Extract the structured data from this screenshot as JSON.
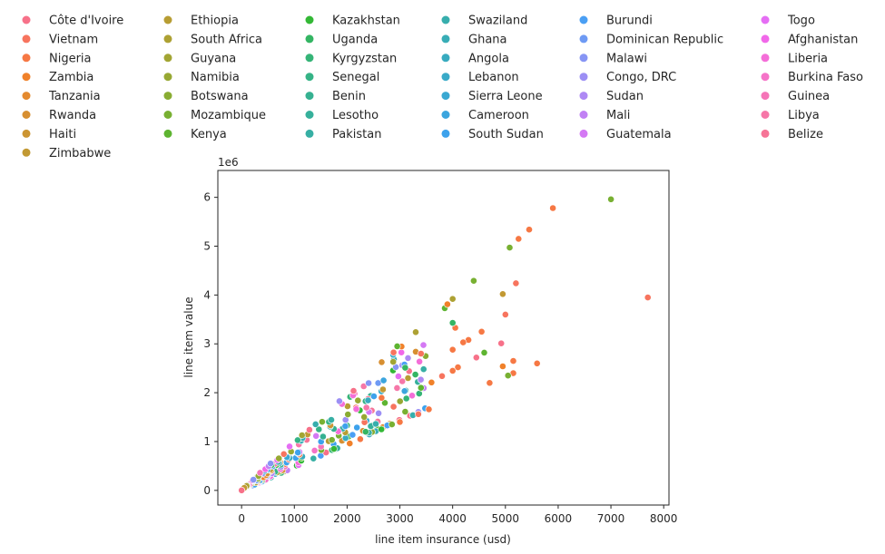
{
  "chart_data": {
    "type": "scatter",
    "title": "",
    "xlabel": "line item insurance (usd)",
    "ylabel": "line item value",
    "y_offset_label": "1e6",
    "xlim": [
      -450,
      8100
    ],
    "ylim": [
      -300000,
      6550000
    ],
    "x_ticks": [
      0,
      1000,
      2000,
      3000,
      4000,
      5000,
      6000,
      7000,
      8000
    ],
    "x_tick_labels": [
      "0",
      "1000",
      "2000",
      "3000",
      "4000",
      "5000",
      "6000",
      "7000",
      "8000"
    ],
    "y_ticks": [
      0,
      1000000,
      2000000,
      3000000,
      4000000,
      5000000,
      6000000
    ],
    "y_tick_labels": [
      "0",
      "1",
      "2",
      "3",
      "4",
      "5",
      "6"
    ],
    "grid": false,
    "legend_placement": "top, outside plot, 6 columns",
    "legend_columns": [
      [
        {
          "name": "Côte d'Ivoire",
          "color": "#f77189"
        },
        {
          "name": "Vietnam",
          "color": "#f7745e"
        },
        {
          "name": "Nigeria",
          "color": "#f67844"
        },
        {
          "name": "Zambia",
          "color": "#f0812a"
        },
        {
          "name": "Tanzania",
          "color": "#e48a2f"
        },
        {
          "name": "Rwanda",
          "color": "#d78f31"
        },
        {
          "name": "Haiti",
          "color": "#cc9532"
        },
        {
          "name": "Zimbabwe",
          "color": "#c29933"
        }
      ],
      [
        {
          "name": "Ethiopia",
          "color": "#b79d33"
        },
        {
          "name": "South Africa",
          "color": "#ada133"
        },
        {
          "name": "Guyana",
          "color": "#a2a533"
        },
        {
          "name": "Namibia",
          "color": "#97a833"
        },
        {
          "name": "Botswana",
          "color": "#89ac33"
        },
        {
          "name": "Mozambique",
          "color": "#78b032"
        },
        {
          "name": "Kenya",
          "color": "#5eb431"
        }
      ],
      [
        {
          "name": "Kazakhstan",
          "color": "#33b836"
        },
        {
          "name": "Uganda",
          "color": "#34b563"
        },
        {
          "name": "Kyrgyzstan",
          "color": "#35b477"
        },
        {
          "name": "Senegal",
          "color": "#35b386"
        },
        {
          "name": "Benin",
          "color": "#36b191"
        },
        {
          "name": "Lesotho",
          "color": "#36b09b"
        },
        {
          "name": "Pakistan",
          "color": "#37afa4"
        }
      ],
      [
        {
          "name": "Swaziland",
          "color": "#37aead"
        },
        {
          "name": "Ghana",
          "color": "#38adb6"
        },
        {
          "name": "Angola",
          "color": "#38abbf"
        },
        {
          "name": "Lebanon",
          "color": "#39aac8"
        },
        {
          "name": "Sierra Leone",
          "color": "#3aa8d2"
        },
        {
          "name": "Cameroon",
          "color": "#3ba5de"
        },
        {
          "name": "South Sudan",
          "color": "#3da2ec"
        }
      ],
      [
        {
          "name": "Burundi",
          "color": "#4a9ff4"
        },
        {
          "name": "Dominican Republic",
          "color": "#6e9af4"
        },
        {
          "name": "Malawi",
          "color": "#8795f4"
        },
        {
          "name": "Congo, DRC",
          "color": "#9c8ff4"
        },
        {
          "name": "Sudan",
          "color": "#ae89f4"
        },
        {
          "name": "Mali",
          "color": "#c181f4"
        },
        {
          "name": "Guatemala",
          "color": "#d479f4"
        }
      ],
      [
        {
          "name": "Togo",
          "color": "#e56ef4"
        },
        {
          "name": "Afghanistan",
          "color": "#f168e9"
        },
        {
          "name": "Liberia",
          "color": "#f46ed8"
        },
        {
          "name": "Burkina Faso",
          "color": "#f573c8"
        },
        {
          "name": "Guinea",
          "color": "#f575b8"
        },
        {
          "name": "Libya",
          "color": "#f677a8"
        },
        {
          "name": "Belize",
          "color": "#f67497"
        }
      ]
    ],
    "notable_points": [
      {
        "x": 5900,
        "y": 5780000,
        "color": "#f67844"
      },
      {
        "x": 5450,
        "y": 5340000,
        "color": "#f67844"
      },
      {
        "x": 5250,
        "y": 5150000,
        "color": "#f67844"
      },
      {
        "x": 7000,
        "y": 5960000,
        "color": "#78b032"
      },
      {
        "x": 5080,
        "y": 4970000,
        "color": "#78b032"
      },
      {
        "x": 4400,
        "y": 4290000,
        "color": "#78b032"
      },
      {
        "x": 5200,
        "y": 4240000,
        "color": "#f7745e"
      },
      {
        "x": 7700,
        "y": 3950000,
        "color": "#f7745e"
      },
      {
        "x": 4000,
        "y": 3920000,
        "color": "#ada133"
      },
      {
        "x": 4950,
        "y": 4020000,
        "color": "#c29933"
      },
      {
        "x": 3850,
        "y": 3730000,
        "color": "#5eb431"
      },
      {
        "x": 3900,
        "y": 3810000,
        "color": "#f0812a"
      },
      {
        "x": 5000,
        "y": 3600000,
        "color": "#f7745e"
      },
      {
        "x": 4050,
        "y": 3330000,
        "color": "#f67844"
      },
      {
        "x": 3300,
        "y": 3240000,
        "color": "#ada133"
      },
      {
        "x": 4550,
        "y": 3250000,
        "color": "#f67844"
      },
      {
        "x": 4000,
        "y": 3430000,
        "color": "#34b563"
      },
      {
        "x": 4300,
        "y": 3080000,
        "color": "#f67844"
      },
      {
        "x": 4200,
        "y": 3030000,
        "color": "#f67844"
      },
      {
        "x": 4920,
        "y": 3010000,
        "color": "#f77189"
      },
      {
        "x": 4600,
        "y": 2820000,
        "color": "#5eb431"
      },
      {
        "x": 3300,
        "y": 2840000,
        "color": "#d78f31"
      },
      {
        "x": 3400,
        "y": 2800000,
        "color": "#f7745e"
      },
      {
        "x": 4000,
        "y": 2880000,
        "color": "#f67844"
      },
      {
        "x": 2950,
        "y": 2950000,
        "color": "#5eb431"
      },
      {
        "x": 5150,
        "y": 2650000,
        "color": "#f67844"
      },
      {
        "x": 5600,
        "y": 2600000,
        "color": "#f67844"
      },
      {
        "x": 4950,
        "y": 2540000,
        "color": "#f0812a"
      },
      {
        "x": 5150,
        "y": 2400000,
        "color": "#f67844"
      },
      {
        "x": 5050,
        "y": 2350000,
        "color": "#78b032"
      },
      {
        "x": 4700,
        "y": 2200000,
        "color": "#f67844"
      },
      {
        "x": 4450,
        "y": 2720000,
        "color": "#f77189"
      },
      {
        "x": 3450,
        "y": 2480000,
        "color": "#37afa4"
      },
      {
        "x": 3100,
        "y": 2510000,
        "color": "#34b563"
      },
      {
        "x": 4100,
        "y": 2520000,
        "color": "#f67844"
      },
      {
        "x": 4000,
        "y": 2450000,
        "color": "#f67844"
      },
      {
        "x": 3800,
        "y": 2340000,
        "color": "#f7745e"
      },
      {
        "x": 3600,
        "y": 2210000,
        "color": "#f0812a"
      },
      {
        "x": 3400,
        "y": 2100000,
        "color": "#5eb431"
      },
      {
        "x": 3100,
        "y": 1610000,
        "color": "#78b032"
      },
      {
        "x": 3550,
        "y": 1660000,
        "color": "#f67844"
      },
      {
        "x": 3350,
        "y": 1560000,
        "color": "#f7745e"
      },
      {
        "x": 3000,
        "y": 1400000,
        "color": "#f67844"
      },
      {
        "x": 2850,
        "y": 1350000,
        "color": "#78b032"
      },
      {
        "x": 2650,
        "y": 1250000,
        "color": "#33b836"
      },
      {
        "x": 2350,
        "y": 1200000,
        "color": "#34b563"
      },
      {
        "x": 2250,
        "y": 1050000,
        "color": "#f67844"
      },
      {
        "x": 2050,
        "y": 960000,
        "color": "#f0812a"
      },
      {
        "x": 1750,
        "y": 850000,
        "color": "#33b836"
      },
      {
        "x": 550,
        "y": 550000,
        "color": "#8795f4"
      },
      {
        "x": 350,
        "y": 360000,
        "color": "#f575b8"
      },
      {
        "x": 50,
        "y": 50000,
        "color": "#c29933"
      },
      {
        "x": 0,
        "y": 0,
        "color": "#f77189"
      }
    ]
  }
}
